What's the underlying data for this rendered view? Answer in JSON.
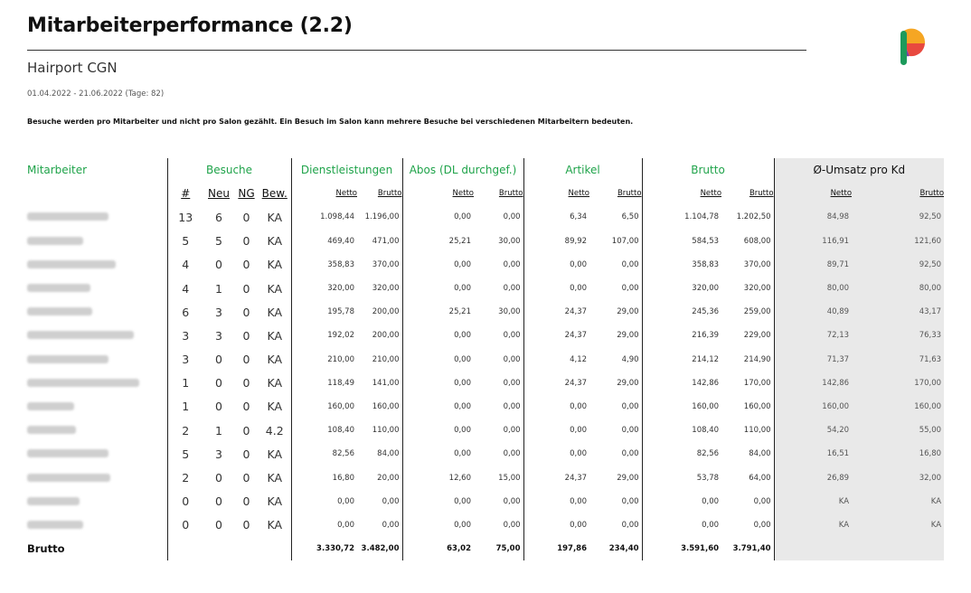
{
  "header": {
    "title": "Mitarbeiterperformance (2.2)",
    "salon": "Hairport CGN",
    "date_range": "01.04.2022 - 21.06.2022 (Tage: 82)",
    "note": "Besuche werden pro Mitarbeiter und nicht pro Salon gezählt. Ein Besuch im Salon kann mehrere Besuche bei verschiedenen Mitarbeitern bedeuten."
  },
  "colors": {
    "accent_green": "#1fa34a",
    "avg_bg": "#e9e9e9"
  },
  "table": {
    "group_headers": {
      "mitarbeiter": "Mitarbeiter",
      "besuche": "Besuche",
      "dienstleistungen": "Dienstleistungen",
      "abos": "Abos (DL durchgef.)",
      "artikel": "Artikel",
      "brutto": "Brutto",
      "avg": "Ø-Umsatz pro Kd"
    },
    "sub_headers": {
      "count": "#",
      "neu": "Neu",
      "ng": "NG",
      "bew": "Bew.",
      "netto": "Netto",
      "brutto": "Brutto"
    },
    "rows": [
      {
        "v": [
          "13",
          "6",
          "0",
          "KA",
          "1.098,44",
          "1.196,00",
          "0,00",
          "0,00",
          "6,34",
          "6,50",
          "1.104,78",
          "1.202,50",
          "84,98",
          "92,50"
        ]
      },
      {
        "v": [
          "5",
          "5",
          "0",
          "KA",
          "469,40",
          "471,00",
          "25,21",
          "30,00",
          "89,92",
          "107,00",
          "584,53",
          "608,00",
          "116,91",
          "121,60"
        ]
      },
      {
        "v": [
          "4",
          "0",
          "0",
          "KA",
          "358,83",
          "370,00",
          "0,00",
          "0,00",
          "0,00",
          "0,00",
          "358,83",
          "370,00",
          "89,71",
          "92,50"
        ]
      },
      {
        "v": [
          "4",
          "1",
          "0",
          "KA",
          "320,00",
          "320,00",
          "0,00",
          "0,00",
          "0,00",
          "0,00",
          "320,00",
          "320,00",
          "80,00",
          "80,00"
        ]
      },
      {
        "v": [
          "6",
          "3",
          "0",
          "KA",
          "195,78",
          "200,00",
          "25,21",
          "30,00",
          "24,37",
          "29,00",
          "245,36",
          "259,00",
          "40,89",
          "43,17"
        ]
      },
      {
        "v": [
          "3",
          "3",
          "0",
          "KA",
          "192,02",
          "200,00",
          "0,00",
          "0,00",
          "24,37",
          "29,00",
          "216,39",
          "229,00",
          "72,13",
          "76,33"
        ]
      },
      {
        "v": [
          "3",
          "0",
          "0",
          "KA",
          "210,00",
          "210,00",
          "0,00",
          "0,00",
          "4,12",
          "4,90",
          "214,12",
          "214,90",
          "71,37",
          "71,63"
        ]
      },
      {
        "v": [
          "1",
          "0",
          "0",
          "KA",
          "118,49",
          "141,00",
          "0,00",
          "0,00",
          "24,37",
          "29,00",
          "142,86",
          "170,00",
          "142,86",
          "170,00"
        ]
      },
      {
        "v": [
          "1",
          "0",
          "0",
          "KA",
          "160,00",
          "160,00",
          "0,00",
          "0,00",
          "0,00",
          "0,00",
          "160,00",
          "160,00",
          "160,00",
          "160,00"
        ]
      },
      {
        "v": [
          "2",
          "1",
          "0",
          "4.2",
          "108,40",
          "110,00",
          "0,00",
          "0,00",
          "0,00",
          "0,00",
          "108,40",
          "110,00",
          "54,20",
          "55,00"
        ]
      },
      {
        "v": [
          "5",
          "3",
          "0",
          "KA",
          "82,56",
          "84,00",
          "0,00",
          "0,00",
          "0,00",
          "0,00",
          "82,56",
          "84,00",
          "16,51",
          "16,80"
        ]
      },
      {
        "v": [
          "2",
          "0",
          "0",
          "KA",
          "16,80",
          "20,00",
          "12,60",
          "15,00",
          "24,37",
          "29,00",
          "53,78",
          "64,00",
          "26,89",
          "32,00"
        ]
      },
      {
        "v": [
          "0",
          "0",
          "0",
          "KA",
          "0,00",
          "0,00",
          "0,00",
          "0,00",
          "0,00",
          "0,00",
          "0,00",
          "0,00",
          "KA",
          "KA"
        ]
      },
      {
        "v": [
          "0",
          "0",
          "0",
          "KA",
          "0,00",
          "0,00",
          "0,00",
          "0,00",
          "0,00",
          "0,00",
          "0,00",
          "0,00",
          "KA",
          "KA"
        ]
      }
    ],
    "total": {
      "label": "Brutto",
      "v": [
        "3.330,72",
        "3.482,00",
        "63,02",
        "75,00",
        "197,86",
        "234,40",
        "3.591,60",
        "3.791,40"
      ]
    }
  }
}
